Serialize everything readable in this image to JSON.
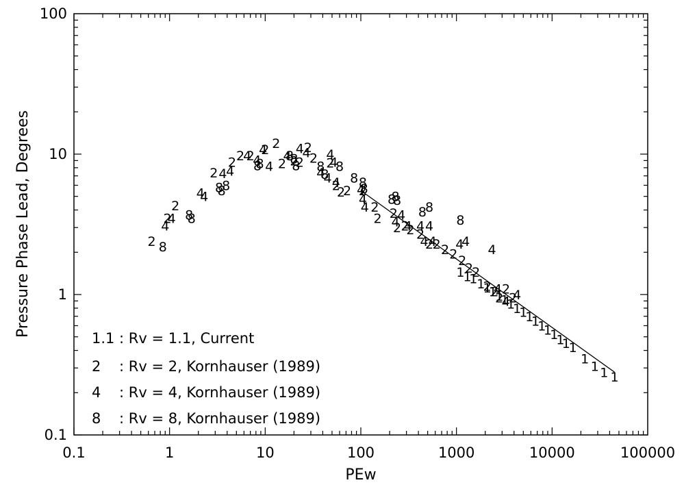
{
  "chart_data": {
    "type": "scatter",
    "xlabel": "PEw",
    "ylabel": "Pressure Phase Lead,  Degrees",
    "x_scale": "log",
    "y_scale": "log",
    "xlim": [
      0.1,
      100000
    ],
    "ylim": [
      0.1,
      100
    ],
    "x_ticks": [
      {
        "value": 0.1,
        "label": "0.1"
      },
      {
        "value": 1,
        "label": "1"
      },
      {
        "value": 10,
        "label": "10"
      },
      {
        "value": 100,
        "label": "100"
      },
      {
        "value": 1000,
        "label": "1000"
      },
      {
        "value": 10000,
        "label": "10000"
      },
      {
        "value": 100000,
        "label": "100000"
      }
    ],
    "y_ticks": [
      {
        "value": 0.1,
        "label": "0.1"
      },
      {
        "value": 1,
        "label": "1"
      },
      {
        "value": 10,
        "label": "10"
      },
      {
        "value": 100,
        "label": "100"
      }
    ],
    "grid": false,
    "legend": {
      "placement": "bottom-left",
      "entries": [
        {
          "marker": "1.1",
          "text": ":  Rv = 1.1,  Current"
        },
        {
          "marker": "2",
          "text": ":  Rv = 2,  Kornhauser (1989)"
        },
        {
          "marker": "4",
          "text": ":  Rv = 4,  Kornhauser (1989)"
        },
        {
          "marker": "8",
          "text": ":  Rv = 8,  Kornhauser (1989)"
        }
      ]
    },
    "series": [
      {
        "name": "1.1",
        "marker": "1",
        "points": [
          [
            1100,
            1.45
          ],
          [
            1300,
            1.35
          ],
          [
            1500,
            1.3
          ],
          [
            1800,
            1.2
          ],
          [
            2100,
            1.12
          ],
          [
            2400,
            1.05
          ],
          [
            2800,
            0.98
          ],
          [
            3200,
            0.92
          ],
          [
            3700,
            0.86
          ],
          [
            4300,
            0.8
          ],
          [
            5000,
            0.75
          ],
          [
            5800,
            0.7
          ],
          [
            6700,
            0.65
          ],
          [
            7800,
            0.6
          ],
          [
            9000,
            0.56
          ],
          [
            10500,
            0.52
          ],
          [
            12200,
            0.48
          ],
          [
            14000,
            0.45
          ],
          [
            16500,
            0.42
          ],
          [
            22000,
            0.35
          ],
          [
            28000,
            0.31
          ],
          [
            35000,
            0.28
          ],
          [
            45000,
            0.26
          ]
        ]
      },
      {
        "name": "2",
        "marker": "2",
        "points": [
          [
            0.65,
            2.4
          ],
          [
            0.95,
            3.5
          ],
          [
            1.15,
            4.3
          ],
          [
            2.9,
            7.4
          ],
          [
            4.5,
            8.8
          ],
          [
            5.5,
            9.8
          ],
          [
            7,
            9.8
          ],
          [
            10,
            10.8
          ],
          [
            13,
            12.0
          ],
          [
            15,
            8.6
          ],
          [
            20,
            9.0
          ],
          [
            23,
            8.8
          ],
          [
            28,
            11.2
          ],
          [
            32,
            9.4
          ],
          [
            48,
            8.7
          ],
          [
            55,
            6.0
          ],
          [
            62,
            5.4
          ],
          [
            72,
            5.5
          ],
          [
            105,
            5.5
          ],
          [
            140,
            4.2
          ],
          [
            150,
            3.5
          ],
          [
            220,
            3.8
          ],
          [
            240,
            3.0
          ],
          [
            290,
            3.1
          ],
          [
            330,
            2.9
          ],
          [
            420,
            2.7
          ],
          [
            520,
            2.3
          ],
          [
            620,
            2.3
          ],
          [
            760,
            2.1
          ],
          [
            930,
            1.95
          ],
          [
            1150,
            1.75
          ],
          [
            1350,
            1.55
          ],
          [
            1600,
            1.45
          ],
          [
            2100,
            1.15
          ],
          [
            2500,
            1.05
          ],
          [
            2800,
            0.95
          ],
          [
            3300,
            1.1
          ],
          [
            3900,
            0.95
          ]
        ]
      },
      {
        "name": "4",
        "marker": "4",
        "points": [
          [
            0.9,
            3.1
          ],
          [
            1.05,
            3.5
          ],
          [
            2.1,
            5.3
          ],
          [
            2.3,
            5.0
          ],
          [
            3.6,
            7.3
          ],
          [
            4.3,
            7.6
          ],
          [
            6.5,
            9.8
          ],
          [
            8.2,
            9.1
          ],
          [
            9.5,
            10.8
          ],
          [
            11,
            8.2
          ],
          [
            17,
            9.8
          ],
          [
            23,
            11.0
          ],
          [
            27,
            10.3
          ],
          [
            38,
            7.4
          ],
          [
            45,
            6.8
          ],
          [
            48,
            10.0
          ],
          [
            52,
            8.8
          ],
          [
            55,
            6.3
          ],
          [
            100,
            5.6
          ],
          [
            105,
            4.8
          ],
          [
            110,
            4.2
          ],
          [
            230,
            3.3
          ],
          [
            265,
            3.7
          ],
          [
            310,
            3.1
          ],
          [
            420,
            3.1
          ],
          [
            460,
            2.4
          ],
          [
            520,
            3.1
          ],
          [
            560,
            2.4
          ],
          [
            1080,
            2.3
          ],
          [
            1250,
            2.4
          ],
          [
            2350,
            2.1
          ],
          [
            2700,
            1.1
          ],
          [
            3300,
            0.9
          ],
          [
            4300,
            1.0
          ]
        ]
      },
      {
        "name": "8",
        "marker": "8",
        "points": [
          [
            0.85,
            2.2
          ],
          [
            1.6,
            3.7
          ],
          [
            1.7,
            3.5
          ],
          [
            3.3,
            5.8
          ],
          [
            3.5,
            5.5
          ],
          [
            3.9,
            6.0
          ],
          [
            8.3,
            8.3
          ],
          [
            8.8,
            8.6
          ],
          [
            18,
            9.8
          ],
          [
            20,
            9.3
          ],
          [
            21,
            8.3
          ],
          [
            38,
            8.2
          ],
          [
            42,
            7.2
          ],
          [
            60,
            8.2
          ],
          [
            85,
            6.8
          ],
          [
            105,
            6.3
          ],
          [
            108,
            5.7
          ],
          [
            210,
            4.8
          ],
          [
            230,
            5.0
          ],
          [
            240,
            4.7
          ],
          [
            440,
            3.9
          ],
          [
            520,
            4.2
          ],
          [
            1100,
            3.4
          ]
        ]
      }
    ],
    "trend_line": [
      [
        100,
        5.5
      ],
      [
        45000,
        0.28
      ]
    ]
  }
}
